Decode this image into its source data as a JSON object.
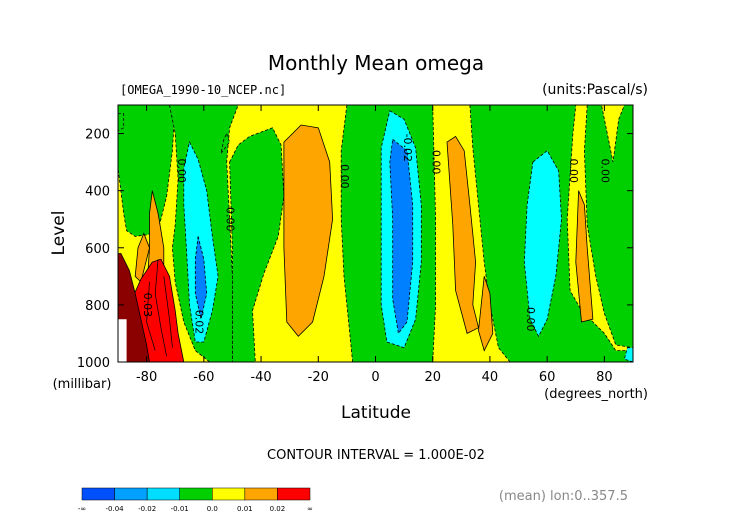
{
  "chart_data": {
    "type": "contour",
    "title": "Monthly Mean omega",
    "file_label": "[OMEGA_1990-10_NCEP.nc]",
    "units_label": "(units:Pascal/s)",
    "xlabel": "Latitude",
    "x_units": "(degrees_north)",
    "ylabel": "Level",
    "y_units": "(millibar)",
    "xlim": [
      -90,
      90
    ],
    "ylim": [
      1000,
      100
    ],
    "x_ticks": [
      "-80",
      "-60",
      "-40",
      "-20",
      "0",
      "20",
      "40",
      "60",
      "80"
    ],
    "y_ticks": [
      "200",
      "400",
      "600",
      "800",
      "1000"
    ],
    "x_tick_values": [
      -80,
      -60,
      -40,
      -20,
      0,
      20,
      40,
      60,
      80
    ],
    "y_tick_values": [
      200,
      400,
      600,
      800,
      1000
    ],
    "contour_interval_text": "CONTOUR INTERVAL = 1.000E-02",
    "mean_text": "(mean) lon:0..357.5",
    "contour_labels": [
      {
        "text": "0.00",
        "lat": -69,
        "level": 330
      },
      {
        "text": "0.00",
        "lat": -52,
        "level": 500
      },
      {
        "text": "0.00",
        "lat": -12,
        "level": 350
      },
      {
        "text": "-0.02",
        "lat": 10,
        "level": 250
      },
      {
        "text": "0.00",
        "lat": 20,
        "level": 300
      },
      {
        "text": "0.00",
        "lat": 68,
        "level": 330
      },
      {
        "text": "0.00",
        "lat": 79,
        "level": 330
      },
      {
        "text": "0.00",
        "lat": 53,
        "level": 850
      },
      {
        "text": "0.02",
        "lat": -63,
        "level": 860
      },
      {
        "text": "0.03",
        "lat": -81,
        "level": 800
      }
    ],
    "regions": [
      {
        "band": "0.0..0.01",
        "points": [
          [
            -90,
            100
          ],
          [
            -90,
            1000
          ],
          [
            90,
            1000
          ],
          [
            90,
            100
          ]
        ]
      },
      {
        "band": "-0.01..0.0",
        "points": [
          [
            -90,
            100
          ],
          [
            -90,
            320
          ],
          [
            -88,
            480
          ],
          [
            -87,
            540
          ],
          [
            -84,
            560
          ],
          [
            -80,
            555
          ],
          [
            -76,
            540
          ],
          [
            -73,
            420
          ],
          [
            -71,
            260
          ],
          [
            -70,
            100
          ]
        ]
      },
      {
        "band": "-0.01..0.0",
        "points": [
          [
            -72,
            100
          ],
          [
            -70,
            200
          ],
          [
            -69,
            360
          ],
          [
            -70,
            520
          ],
          [
            -71,
            600
          ],
          [
            -70,
            720
          ],
          [
            -67,
            860
          ],
          [
            -63,
            960
          ],
          [
            -58,
            1000
          ],
          [
            -50,
            1000
          ],
          [
            -50,
            700
          ],
          [
            -51,
            500
          ],
          [
            -52,
            300
          ],
          [
            -51,
            180
          ],
          [
            -48,
            100
          ]
        ]
      },
      {
        "band": "-0.01..0.0",
        "points": [
          [
            -51,
            300
          ],
          [
            -48,
            240
          ],
          [
            -44,
            210
          ],
          [
            -36,
            180
          ],
          [
            -33,
            240
          ],
          [
            -32,
            420
          ],
          [
            -34,
            560
          ],
          [
            -39,
            690
          ],
          [
            -43,
            820
          ],
          [
            -42,
            1000
          ],
          [
            -50,
            1000
          ],
          [
            -50,
            600
          ]
        ]
      },
      {
        "band": "-0.01..0.0",
        "points": [
          [
            -10,
            100
          ],
          [
            -12,
            260
          ],
          [
            -12,
            500
          ],
          [
            -11,
            700
          ],
          [
            -9,
            900
          ],
          [
            -8,
            1000
          ],
          [
            20,
            1000
          ],
          [
            21,
            800
          ],
          [
            21,
            500
          ],
          [
            20,
            100
          ]
        ]
      },
      {
        "band": "-0.01..0.0",
        "points": [
          [
            33,
            100
          ],
          [
            34,
            250
          ],
          [
            36,
            450
          ],
          [
            38,
            650
          ],
          [
            40,
            800
          ],
          [
            43,
            950
          ],
          [
            47,
            1000
          ],
          [
            90,
            1000
          ],
          [
            90,
            960
          ],
          [
            84,
            960
          ],
          [
            80,
            900
          ],
          [
            76,
            860
          ],
          [
            72,
            820
          ],
          [
            68,
            750
          ],
          [
            67,
            500
          ],
          [
            69,
            200
          ],
          [
            70,
            100
          ]
        ]
      },
      {
        "band": "-0.01..0.0",
        "points": [
          [
            74,
            100
          ],
          [
            73,
            260
          ],
          [
            74,
            520
          ],
          [
            77,
            700
          ],
          [
            80,
            830
          ],
          [
            84,
            940
          ],
          [
            90,
            950
          ],
          [
            90,
            100
          ],
          [
            87,
            100
          ],
          [
            85,
            150
          ],
          [
            83,
            300
          ],
          [
            81,
            200
          ],
          [
            79,
            100
          ]
        ]
      },
      {
        "band": "-0.01..0.0",
        "points": [
          [
            -90,
            130
          ],
          [
            -88,
            130
          ],
          [
            -88,
            180
          ],
          [
            -90,
            190
          ]
        ]
      },
      {
        "band": "-0.01..0.0",
        "points": [
          [
            -52,
            200
          ],
          [
            -51,
            230
          ],
          [
            -54,
            270
          ],
          [
            -53,
            220
          ]
        ]
      },
      {
        "band": "-0.02..-0.01",
        "points": [
          [
            -65,
            230
          ],
          [
            -62,
            290
          ],
          [
            -59,
            400
          ],
          [
            -57,
            560
          ],
          [
            -55,
            700
          ],
          [
            -57,
            820
          ],
          [
            -60,
            930
          ],
          [
            -63,
            930
          ],
          [
            -65,
            800
          ],
          [
            -66,
            620
          ],
          [
            -67,
            450
          ],
          [
            -67,
            320
          ]
        ]
      },
      {
        "band": "-0.02..-0.01",
        "points": [
          [
            5,
            120
          ],
          [
            10,
            150
          ],
          [
            14,
            250
          ],
          [
            16,
            450
          ],
          [
            16,
            650
          ],
          [
            14,
            850
          ],
          [
            10,
            950
          ],
          [
            4,
            930
          ],
          [
            2,
            800
          ],
          [
            2,
            500
          ],
          [
            2,
            250
          ]
        ]
      },
      {
        "band": "-0.02..-0.01",
        "points": [
          [
            55,
            300
          ],
          [
            60,
            260
          ],
          [
            64,
            330
          ],
          [
            65,
            500
          ],
          [
            63,
            700
          ],
          [
            60,
            850
          ],
          [
            57,
            910
          ],
          [
            54,
            850
          ],
          [
            52,
            650
          ],
          [
            53,
            450
          ]
        ]
      },
      {
        "band": "-0.02..-0.01",
        "points": [
          [
            88,
            950
          ],
          [
            90,
            950
          ],
          [
            90,
            1000
          ],
          [
            87,
            990
          ]
        ]
      },
      {
        "band": "-0.03..-0.02",
        "points": [
          [
            -62,
            560
          ],
          [
            -60,
            640
          ],
          [
            -59,
            760
          ],
          [
            -61,
            850
          ],
          [
            -63,
            760
          ],
          [
            -63,
            640
          ]
        ]
      },
      {
        "band": "-0.03..-0.02",
        "points": [
          [
            6,
            220
          ],
          [
            11,
            260
          ],
          [
            13,
            450
          ],
          [
            13,
            650
          ],
          [
            11,
            860
          ],
          [
            8,
            900
          ],
          [
            6,
            780
          ],
          [
            6,
            500
          ],
          [
            5,
            300
          ]
        ]
      },
      {
        "band": "0.01..0.02",
        "points": [
          [
            -78,
            400
          ],
          [
            -76,
            480
          ],
          [
            -74,
            600
          ],
          [
            -74,
            750
          ],
          [
            -72,
            900
          ],
          [
            -74,
            960
          ],
          [
            -77,
            900
          ],
          [
            -80,
            760
          ],
          [
            -79,
            600
          ],
          [
            -79,
            480
          ]
        ]
      },
      {
        "band": "0.01..0.02",
        "points": [
          [
            -32,
            230
          ],
          [
            -26,
            170
          ],
          [
            -20,
            180
          ],
          [
            -16,
            300
          ],
          [
            -15,
            500
          ],
          [
            -18,
            700
          ],
          [
            -22,
            860
          ],
          [
            -27,
            910
          ],
          [
            -31,
            860
          ],
          [
            -32,
            600
          ]
        ]
      },
      {
        "band": "0.01..0.02",
        "points": [
          [
            25,
            230
          ],
          [
            28,
            210
          ],
          [
            31,
            260
          ],
          [
            33,
            450
          ],
          [
            35,
            650
          ],
          [
            34,
            800
          ],
          [
            36,
            880
          ],
          [
            32,
            900
          ],
          [
            28,
            750
          ],
          [
            27,
            520
          ]
        ]
      },
      {
        "band": "0.01..0.02",
        "points": [
          [
            38,
            700
          ],
          [
            40,
            760
          ],
          [
            41,
            900
          ],
          [
            38,
            960
          ],
          [
            36,
            890
          ]
        ]
      },
      {
        "band": "0.01..0.02",
        "points": [
          [
            71,
            400
          ],
          [
            73,
            450
          ],
          [
            74,
            600
          ],
          [
            76,
            850
          ],
          [
            72,
            860
          ],
          [
            70,
            650
          ]
        ]
      },
      {
        "band": "0.01..0.02",
        "points": [
          [
            -84,
            700
          ],
          [
            -83,
            600
          ],
          [
            -81,
            550
          ],
          [
            -79,
            600
          ],
          [
            -82,
            720
          ]
        ]
      },
      {
        "band": "0.02..0.03",
        "points": [
          [
            -78,
            650
          ],
          [
            -75,
            640
          ],
          [
            -72,
            700
          ],
          [
            -70,
            820
          ],
          [
            -69,
            900
          ],
          [
            -67,
            1000
          ],
          [
            -86,
            1000
          ],
          [
            -88,
            920
          ],
          [
            -86,
            800
          ],
          [
            -82,
            710
          ]
        ]
      },
      {
        "band": "0.03..inf",
        "points": [
          [
            -90,
            620
          ],
          [
            -89,
            620
          ],
          [
            -86,
            680
          ],
          [
            -84,
            760
          ],
          [
            -82,
            850
          ],
          [
            -80,
            940
          ],
          [
            -79,
            1000
          ],
          [
            -90,
            1000
          ]
        ]
      }
    ],
    "contour_lines": [
      [
        [
          -76,
          640
        ],
        [
          -77,
          760
        ],
        [
          -75,
          880
        ],
        [
          -73,
          980
        ]
      ],
      [
        [
          -79,
          720
        ],
        [
          -80,
          860
        ],
        [
          -77,
          960
        ]
      ],
      [
        [
          -74,
          700
        ],
        [
          -72,
          850
        ],
        [
          -71,
          950
        ]
      ]
    ],
    "missing_data": [
      [
        [
          -90,
          850
        ],
        [
          -87,
          850
        ],
        [
          -87,
          1000
        ],
        [
          -90,
          1000
        ]
      ]
    ],
    "colorbar": {
      "labels": [
        "-∞",
        "-0.04",
        "-0.02",
        "-0.01",
        "0.0",
        "0.01",
        "0.02",
        "∞"
      ],
      "colors": [
        "#0050ff",
        "#00a0ff",
        "#00ddff",
        "#00d000",
        "#ffff00",
        "#ffa500",
        "#ff0000"
      ]
    },
    "band_colors": {
      "-0.03..-0.02": "#0080ff",
      "-0.02..-0.01": "#00ffff",
      "-0.01..0.0": "#00d000",
      "0.0..0.01": "#ffff00",
      "0.01..0.02": "#ffa500",
      "0.02..0.03": "#ff0000",
      "0.03..inf": "#8b0000"
    },
    "missing_color": "#ffffff"
  }
}
